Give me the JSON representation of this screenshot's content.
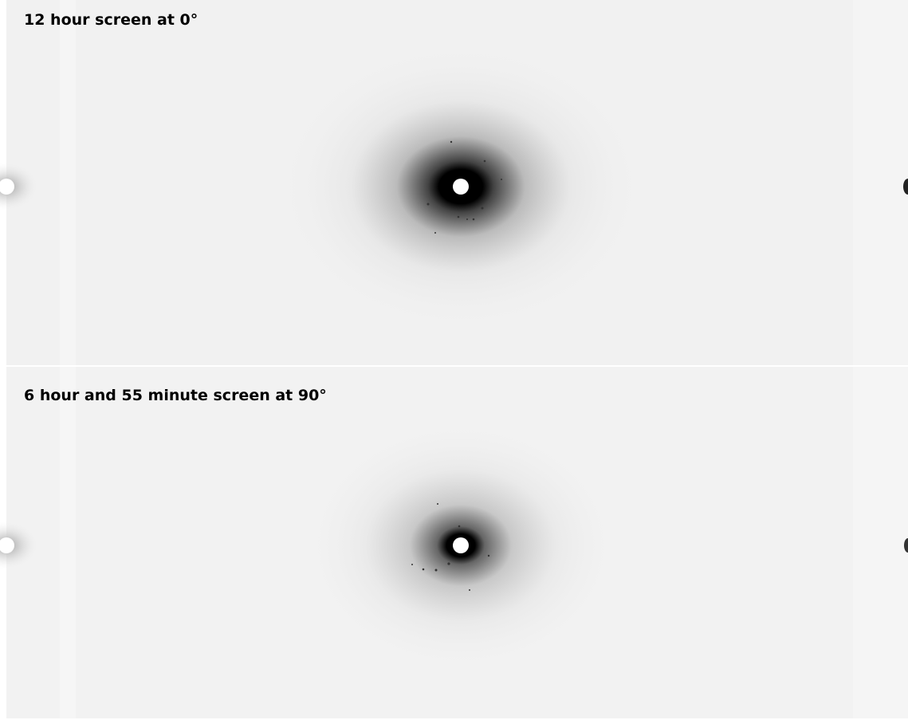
{
  "panels": [
    {
      "label": "12 hour screen at 0°"
    },
    {
      "label": "6 hour and 55 minute screen at 90°"
    }
  ]
}
